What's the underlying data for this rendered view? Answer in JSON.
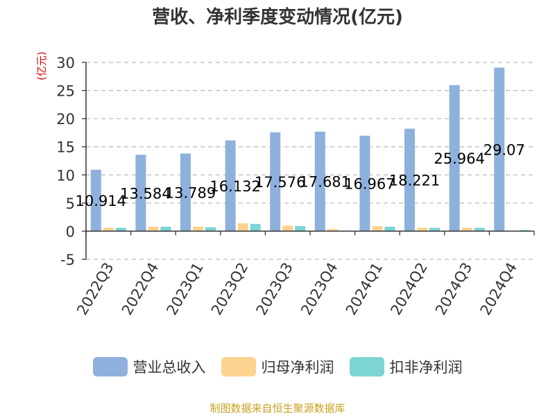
{
  "title": "营收、净利季度变动情况(亿元)",
  "source": "制图数据来自恒生聚源数据库",
  "colors": {
    "revenue": "#8eb0dc",
    "net_profit": "#fdd38f",
    "deducted_net_profit": "#7dd4d4",
    "axis": "#333333",
    "grid": "#bbbbbb"
  },
  "chart_data": {
    "type": "bar",
    "title": "营收、净利季度变动情况(亿元)",
    "ylabel": "(亿元)",
    "xlabel": "",
    "ylim": [
      -5,
      30
    ],
    "yticks": [
      -5,
      0,
      5,
      10,
      15,
      20,
      25,
      30
    ],
    "grid": true,
    "legend_position": "bottom",
    "categories": [
      "2022Q3",
      "2022Q4",
      "2023Q1",
      "2023Q2",
      "2023Q3",
      "2023Q4",
      "2024Q1",
      "2024Q2",
      "2024Q3",
      "2024Q4"
    ],
    "series": [
      {
        "name": "营业总收入",
        "values": [
          10.914,
          13.584,
          13.789,
          16.132,
          17.576,
          17.681,
          16.967,
          18.221,
          25.964,
          29.07
        ],
        "labels": [
          "10.914",
          "13.584",
          "13.789",
          "16.132",
          "17.576",
          "17.681",
          "16.967",
          "18.221",
          "25.964",
          "29.07"
        ]
      },
      {
        "name": "归母净利润",
        "values": [
          0.6,
          0.8,
          0.8,
          1.4,
          1.0,
          0.4,
          0.9,
          0.6,
          0.6,
          0.1
        ]
      },
      {
        "name": "扣非净利润",
        "values": [
          0.6,
          0.8,
          0.7,
          1.3,
          0.9,
          0.1,
          0.8,
          0.6,
          0.6,
          0.2
        ]
      }
    ]
  }
}
